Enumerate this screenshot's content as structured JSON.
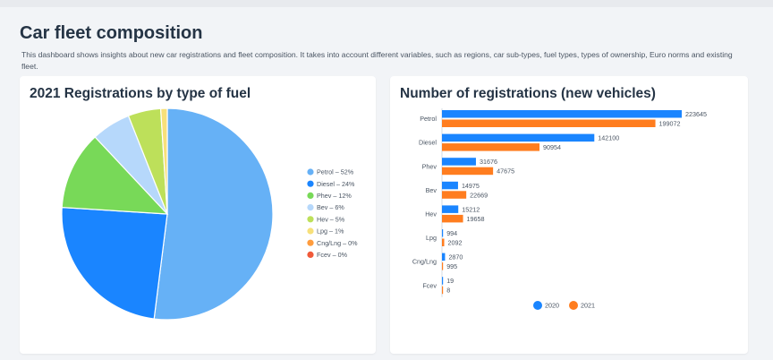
{
  "page": {
    "title": "Car fleet composition",
    "description": "This dashboard shows insights about new car registrations and fleet composition. It takes into account different variables, such as regions, car sub-types, fuel types, types of ownership, Euro norms and existing fleet."
  },
  "chart_data": [
    {
      "type": "pie",
      "title": "2021 Registrations by type of fuel",
      "legend_position": "right",
      "slices": [
        {
          "label": "Petrol",
          "percent": 52,
          "legend": "Petrol – 52%",
          "color": "#66b1f6"
        },
        {
          "label": "Diesel",
          "percent": 24,
          "legend": "Diesel – 24%",
          "color": "#1a85ff"
        },
        {
          "label": "Phev",
          "percent": 12,
          "legend": "Phev – 12%",
          "color": "#78d958"
        },
        {
          "label": "Bev",
          "percent": 6,
          "legend": "Bev – 6%",
          "color": "#b6d8fb"
        },
        {
          "label": "Hev",
          "percent": 5,
          "legend": "Hev – 5%",
          "color": "#bde05a"
        },
        {
          "label": "Lpg",
          "percent": 1,
          "legend": "Lpg – 1%",
          "color": "#f7e07a"
        },
        {
          "label": "Cng/Lng",
          "percent": 0,
          "legend": "Cng/Lng – 0%",
          "color": "#ff9c3d"
        },
        {
          "label": "Fcev",
          "percent": 0,
          "legend": "Fcev – 0%",
          "color": "#f05a3a"
        }
      ]
    },
    {
      "type": "bar",
      "orientation": "horizontal",
      "title": "Number of registrations (new vehicles)",
      "legend_position": "bottom",
      "categories": [
        "Petrol",
        "Diesel",
        "Phev",
        "Bev",
        "Hev",
        "Lpg",
        "Cng/Lng",
        "Fcev"
      ],
      "series": [
        {
          "name": "2020",
          "color": "#1a85ff",
          "values": [
            223645,
            142100,
            31676,
            14975,
            15212,
            994,
            2870,
            19
          ]
        },
        {
          "name": "2021",
          "color": "#ff7d1f",
          "values": [
            199072,
            90954,
            47675,
            22669,
            19658,
            2092,
            995,
            8
          ]
        }
      ],
      "xlim": [
        0,
        223645
      ],
      "grid": false
    }
  ]
}
